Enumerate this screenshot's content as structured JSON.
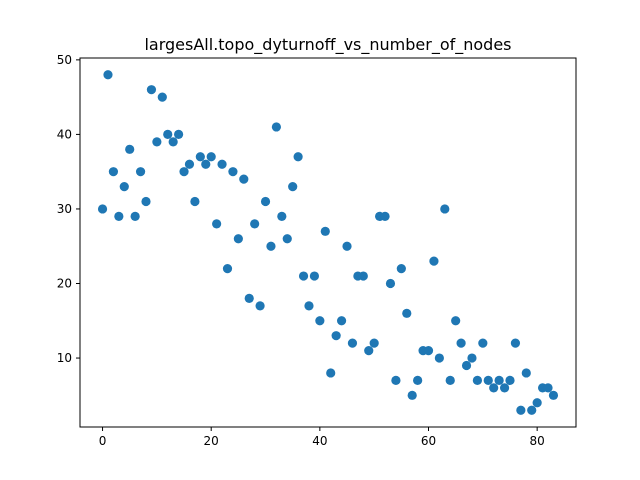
{
  "chart_data": {
    "type": "scatter",
    "title": "largesAll.topo_dyturnoff_vs_number_of_nodes",
    "xlabel": "",
    "ylabel": "",
    "xlim": [
      -4.15,
      87.15
    ],
    "ylim": [
      0.75,
      50.25
    ],
    "xticks": [
      0,
      20,
      40,
      60,
      80
    ],
    "yticks": [
      10,
      20,
      30,
      40,
      50
    ],
    "grid": false,
    "marker_color": "#1f77b4",
    "points": [
      {
        "x": 0,
        "y": 30
      },
      {
        "x": 1,
        "y": 48
      },
      {
        "x": 2,
        "y": 35
      },
      {
        "x": 3,
        "y": 29
      },
      {
        "x": 4,
        "y": 33
      },
      {
        "x": 5,
        "y": 38
      },
      {
        "x": 6,
        "y": 29
      },
      {
        "x": 7,
        "y": 35
      },
      {
        "x": 8,
        "y": 31
      },
      {
        "x": 9,
        "y": 46
      },
      {
        "x": 10,
        "y": 39
      },
      {
        "x": 11,
        "y": 45
      },
      {
        "x": 12,
        "y": 40
      },
      {
        "x": 13,
        "y": 39
      },
      {
        "x": 14,
        "y": 40
      },
      {
        "x": 15,
        "y": 35
      },
      {
        "x": 16,
        "y": 36
      },
      {
        "x": 17,
        "y": 31
      },
      {
        "x": 18,
        "y": 37
      },
      {
        "x": 19,
        "y": 36
      },
      {
        "x": 20,
        "y": 37
      },
      {
        "x": 21,
        "y": 28
      },
      {
        "x": 22,
        "y": 36
      },
      {
        "x": 23,
        "y": 22
      },
      {
        "x": 24,
        "y": 35
      },
      {
        "x": 25,
        "y": 26
      },
      {
        "x": 26,
        "y": 34
      },
      {
        "x": 27,
        "y": 18
      },
      {
        "x": 28,
        "y": 28
      },
      {
        "x": 29,
        "y": 17
      },
      {
        "x": 30,
        "y": 31
      },
      {
        "x": 31,
        "y": 25
      },
      {
        "x": 32,
        "y": 41
      },
      {
        "x": 33,
        "y": 29
      },
      {
        "x": 34,
        "y": 26
      },
      {
        "x": 35,
        "y": 33
      },
      {
        "x": 36,
        "y": 37
      },
      {
        "x": 37,
        "y": 21
      },
      {
        "x": 38,
        "y": 17
      },
      {
        "x": 39,
        "y": 21
      },
      {
        "x": 40,
        "y": 15
      },
      {
        "x": 41,
        "y": 27
      },
      {
        "x": 42,
        "y": 8
      },
      {
        "x": 43,
        "y": 13
      },
      {
        "x": 44,
        "y": 15
      },
      {
        "x": 45,
        "y": 25
      },
      {
        "x": 46,
        "y": 12
      },
      {
        "x": 47,
        "y": 21
      },
      {
        "x": 48,
        "y": 21
      },
      {
        "x": 49,
        "y": 11
      },
      {
        "x": 50,
        "y": 12
      },
      {
        "x": 51,
        "y": 29
      },
      {
        "x": 52,
        "y": 29
      },
      {
        "x": 53,
        "y": 20
      },
      {
        "x": 54,
        "y": 7
      },
      {
        "x": 55,
        "y": 22
      },
      {
        "x": 56,
        "y": 16
      },
      {
        "x": 57,
        "y": 5
      },
      {
        "x": 58,
        "y": 7
      },
      {
        "x": 59,
        "y": 11
      },
      {
        "x": 60,
        "y": 11
      },
      {
        "x": 61,
        "y": 23
      },
      {
        "x": 62,
        "y": 10
      },
      {
        "x": 63,
        "y": 30
      },
      {
        "x": 64,
        "y": 7
      },
      {
        "x": 65,
        "y": 15
      },
      {
        "x": 66,
        "y": 12
      },
      {
        "x": 67,
        "y": 9
      },
      {
        "x": 68,
        "y": 10
      },
      {
        "x": 69,
        "y": 7
      },
      {
        "x": 70,
        "y": 12
      },
      {
        "x": 71,
        "y": 7
      },
      {
        "x": 72,
        "y": 6
      },
      {
        "x": 73,
        "y": 7
      },
      {
        "x": 74,
        "y": 6
      },
      {
        "x": 75,
        "y": 7
      },
      {
        "x": 76,
        "y": 12
      },
      {
        "x": 77,
        "y": 3
      },
      {
        "x": 78,
        "y": 8
      },
      {
        "x": 79,
        "y": 3
      },
      {
        "x": 80,
        "y": 4
      },
      {
        "x": 81,
        "y": 6
      },
      {
        "x": 82,
        "y": 6
      },
      {
        "x": 83,
        "y": 5
      }
    ]
  }
}
